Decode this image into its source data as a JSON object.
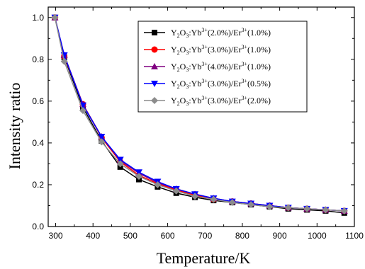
{
  "chart_data": {
    "type": "line",
    "xlabel": "Temperature/K",
    "ylabel": "Intensity ratio",
    "xlim": [
      280,
      1100
    ],
    "ylim": [
      0.0,
      1.05
    ],
    "xticks": [
      300,
      400,
      500,
      600,
      700,
      800,
      900,
      1000,
      1100
    ],
    "yticks": [
      0.0,
      0.2,
      0.4,
      0.6,
      0.8,
      1.0
    ],
    "x": [
      298,
      323,
      373,
      423,
      473,
      523,
      573,
      623,
      673,
      723,
      773,
      823,
      873,
      923,
      973,
      1023,
      1073
    ],
    "grid": false,
    "legend_position": "top-right",
    "series": [
      {
        "name": "Y2O3:Yb3+(2.0%)/Er3+(1.0%)",
        "label_parts": {
          "base": "Y",
          "sub1": "2",
          "mid": "O",
          "sub2": "3",
          "yb": ":Yb",
          "sup1": "3+",
          "yb_pct": "(2.0%)/Er",
          "sup2": "3+",
          "er_pct": "(1.0%)"
        },
        "color": "#000000",
        "marker": "square",
        "values": [
          1.0,
          0.81,
          0.57,
          0.41,
          0.285,
          0.225,
          0.19,
          0.16,
          0.14,
          0.125,
          0.115,
          0.105,
          0.095,
          0.085,
          0.08,
          0.075,
          0.065
        ]
      },
      {
        "name": "Y2O3:Yb3+(3.0%)/Er3+(1.0%)",
        "label_parts": {
          "base": "Y",
          "sub1": "2",
          "mid": "O",
          "sub2": "3",
          "yb": ":Yb",
          "sup1": "3+",
          "yb_pct": "(3.0%)/Er",
          "sup2": "3+",
          "er_pct": "(1.0%)"
        },
        "color": "#ff0000",
        "marker": "circle",
        "values": [
          1.0,
          0.815,
          0.585,
          0.425,
          0.31,
          0.245,
          0.205,
          0.175,
          0.15,
          0.13,
          0.12,
          0.11,
          0.1,
          0.09,
          0.085,
          0.08,
          0.075
        ]
      },
      {
        "name": "Y2O3:Yb3+(4.0%)/Er3+(1.0%)",
        "label_parts": {
          "base": "Y",
          "sub1": "2",
          "mid": "O",
          "sub2": "3",
          "yb": ":Yb",
          "sup1": "3+",
          "yb_pct": "(4.0%)/Er",
          "sup2": "3+",
          "er_pct": "(1.0%)"
        },
        "color": "#800080",
        "marker": "triangle-up",
        "values": [
          1.0,
          0.82,
          0.585,
          0.43,
          0.315,
          0.255,
          0.21,
          0.18,
          0.155,
          0.135,
          0.12,
          0.11,
          0.1,
          0.09,
          0.085,
          0.08,
          0.075
        ]
      },
      {
        "name": "Y2O3:Yb3+(3.0%)/Er3+(0.5%)",
        "label_parts": {
          "base": "Y",
          "sub1": "2",
          "mid": "O",
          "sub2": "3",
          "yb": ":Yb",
          "sup1": "3+",
          "yb_pct": "(3.0%)/Er",
          "sup2": "3+",
          "er_pct": "(0.5%)"
        },
        "color": "#0000ff",
        "marker": "triangle-down",
        "values": [
          1.0,
          0.82,
          0.58,
          0.43,
          0.32,
          0.26,
          0.215,
          0.18,
          0.155,
          0.135,
          0.12,
          0.11,
          0.1,
          0.09,
          0.085,
          0.08,
          0.075
        ]
      },
      {
        "name": "Y2O3:Yb3+(3.0%)/Er3+(2.0%)",
        "label_parts": {
          "base": "Y",
          "sub1": "2",
          "mid": "O",
          "sub2": "3",
          "yb": ":Yb",
          "sup1": "3+",
          "yb_pct": "(3.0%)/Er",
          "sup2": "3+",
          "er_pct": "(2.0%)"
        },
        "color": "#8c8c8c",
        "marker": "diamond",
        "values": [
          1.0,
          0.79,
          0.555,
          0.405,
          0.3,
          0.24,
          0.2,
          0.17,
          0.145,
          0.13,
          0.115,
          0.105,
          0.095,
          0.09,
          0.085,
          0.08,
          0.075
        ]
      }
    ]
  }
}
